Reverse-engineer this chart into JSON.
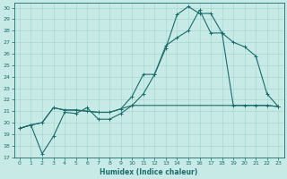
{
  "xlabel": "Humidex (Indice chaleur)",
  "bg_color": "#c8eae6",
  "grid_color": "#a8d8d4",
  "line_color": "#1a6b6b",
  "xlim": [
    -0.5,
    23.5
  ],
  "ylim": [
    17,
    30.4
  ],
  "xticks": [
    0,
    1,
    2,
    3,
    4,
    5,
    6,
    7,
    8,
    9,
    10,
    11,
    12,
    13,
    14,
    15,
    16,
    17,
    18,
    19,
    20,
    21,
    22,
    23
  ],
  "yticks": [
    17,
    18,
    19,
    20,
    21,
    22,
    23,
    24,
    25,
    26,
    27,
    28,
    29,
    30
  ],
  "line1_x": [
    0,
    1,
    2,
    3,
    4,
    5,
    6,
    7,
    8,
    9,
    10,
    11,
    12,
    13,
    14,
    15,
    16,
    17,
    18,
    19,
    20,
    21,
    22,
    23
  ],
  "line1_y": [
    19.5,
    19.8,
    20.0,
    21.3,
    21.1,
    21.1,
    21.0,
    20.9,
    20.9,
    21.2,
    21.5,
    21.5,
    21.5,
    21.5,
    21.5,
    21.5,
    21.5,
    21.5,
    21.5,
    21.5,
    21.5,
    21.5,
    21.5,
    21.4
  ],
  "line2_x": [
    0,
    1,
    2,
    3,
    4,
    5,
    6,
    7,
    8,
    9,
    10,
    11,
    12,
    13,
    14,
    15,
    16,
    17,
    18,
    19,
    20,
    21,
    22,
    23
  ],
  "line2_y": [
    19.5,
    19.8,
    17.3,
    18.8,
    20.9,
    20.8,
    21.3,
    20.3,
    20.3,
    20.8,
    21.5,
    22.5,
    24.2,
    26.5,
    29.4,
    30.1,
    29.5,
    29.5,
    27.8,
    21.5,
    21.5,
    21.5,
    21.5,
    21.4
  ],
  "line3_x": [
    0,
    1,
    2,
    3,
    4,
    5,
    6,
    7,
    8,
    9,
    10,
    11,
    12,
    13,
    14,
    15,
    16,
    17,
    18,
    19,
    20,
    21,
    22,
    23
  ],
  "line3_y": [
    19.5,
    19.8,
    20.0,
    21.3,
    21.1,
    21.1,
    21.0,
    20.9,
    20.9,
    21.2,
    22.3,
    24.2,
    24.2,
    26.7,
    27.4,
    28.0,
    29.8,
    27.8,
    27.8,
    27.0,
    26.6,
    25.8,
    22.5,
    21.4
  ]
}
